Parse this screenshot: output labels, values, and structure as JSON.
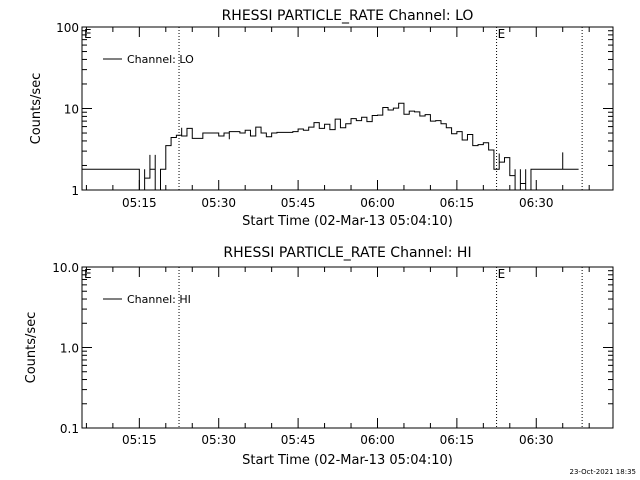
{
  "chart_data": [
    {
      "type": "line",
      "title": "RHESSI PARTICLE_RATE Channel: LO",
      "xlabel": "Start Time (02-Mar-13 05:04:10)",
      "ylabel": "Counts/sec",
      "yscale": "log",
      "ylim": [
        1,
        100
      ],
      "ytick_labels": [
        "1",
        "10",
        "100"
      ],
      "xlim": [
        "05:04:10",
        "06:44:30"
      ],
      "xtick_labels": [
        "05:15",
        "05:30",
        "05:45",
        "06:00",
        "06:15",
        "06:30"
      ],
      "marker_label": "E",
      "legend": "top-left",
      "grid": false,
      "series": [
        {
          "name": "Channel: LO",
          "x": [
            "05:04",
            "05:15",
            "05:15",
            "05:16",
            "05:16",
            "05:17",
            "05:17",
            "05:18",
            "05:18",
            "05:19",
            "05:19",
            "05:20",
            "05:20",
            "05:21",
            "05:21",
            "05:22",
            "05:23",
            "05:23",
            "05:24",
            "05:25",
            "05:25",
            "05:27",
            "05:28",
            "05:30",
            "05:31",
            "05:32",
            "05:32",
            "05:34",
            "05:35",
            "05:36",
            "05:37",
            "05:38",
            "05:39",
            "05:40",
            "05:41",
            "05:44",
            "05:45",
            "05:46",
            "05:47",
            "05:48",
            "05:49",
            "05:50",
            "05:51",
            "05:52",
            "05:53",
            "05:54",
            "05:55",
            "05:56",
            "05:57",
            "05:58",
            "05:59",
            "06:00",
            "06:01",
            "06:02",
            "06:03",
            "06:04",
            "06:05",
            "06:06",
            "06:07",
            "06:08",
            "06:09",
            "06:10",
            "06:11",
            "06:12",
            "06:13",
            "06:14",
            "06:15",
            "06:16",
            "06:17",
            "06:18",
            "06:19",
            "06:20",
            "06:21",
            "06:22",
            "06:22",
            "06:23",
            "06:23",
            "06:24",
            "06:25",
            "06:25",
            "06:26",
            "06:26",
            "06:27",
            "06:27",
            "06:28",
            "06:28",
            "06:29",
            "06:30",
            "06:32",
            "06:34",
            "06:35",
            "06:35",
            "06:36",
            "06:36",
            "06:38"
          ],
          "values": [
            1.8,
            1.8,
            0.9,
            1.8,
            1.4,
            2.7,
            1.8,
            2.7,
            0.9,
            1.8,
            1.8,
            3.5,
            3.5,
            3.5,
            4.4,
            4.7,
            5.8,
            4.6,
            5.7,
            5.4,
            4.3,
            5.0,
            5.0,
            4.6,
            5.0,
            4.2,
            5.2,
            5.0,
            5.4,
            4.6,
            5.9,
            5.0,
            4.5,
            5.0,
            5.1,
            5.2,
            5.6,
            5.4,
            5.9,
            6.7,
            5.7,
            6.4,
            5.5,
            7.4,
            5.8,
            6.5,
            7.5,
            7.1,
            7.8,
            6.9,
            8.2,
            8.3,
            10.3,
            9.6,
            10.1,
            11.6,
            8.5,
            9.3,
            9.1,
            8.1,
            8.4,
            7.0,
            7.1,
            6.5,
            5.8,
            4.9,
            5.2,
            4.1,
            4.8,
            3.5,
            3.6,
            3.8,
            3.1,
            2.6,
            1.8,
            2.8,
            2.2,
            2.5,
            1.8,
            1.5,
            1.8,
            0.9,
            1.8,
            1.2,
            1.8,
            0.9,
            1.8,
            1.8,
            1.8,
            1.8,
            2.9,
            1.8,
            1.8,
            1.8,
            1.8
          ]
        }
      ]
    },
    {
      "type": "line",
      "title": "RHESSI PARTICLE_RATE Channel: HI",
      "xlabel": "Start Time (02-Mar-13 05:04:10)",
      "ylabel": "Counts/sec",
      "yscale": "log",
      "ylim": [
        0.1,
        10
      ],
      "ytick_labels": [
        "0.1",
        "1.0",
        "10.0"
      ],
      "xlim": [
        "05:04:10",
        "06:44:30"
      ],
      "xtick_labels": [
        "05:15",
        "05:30",
        "05:45",
        "06:00",
        "06:15",
        "06:30"
      ],
      "marker_label": "E",
      "legend": "top-left",
      "grid": false,
      "series": [
        {
          "name": "Channel: HI",
          "x": [],
          "values": []
        }
      ]
    }
  ],
  "footer": {
    "timestamp": "23-Oct-2021 18:35"
  }
}
